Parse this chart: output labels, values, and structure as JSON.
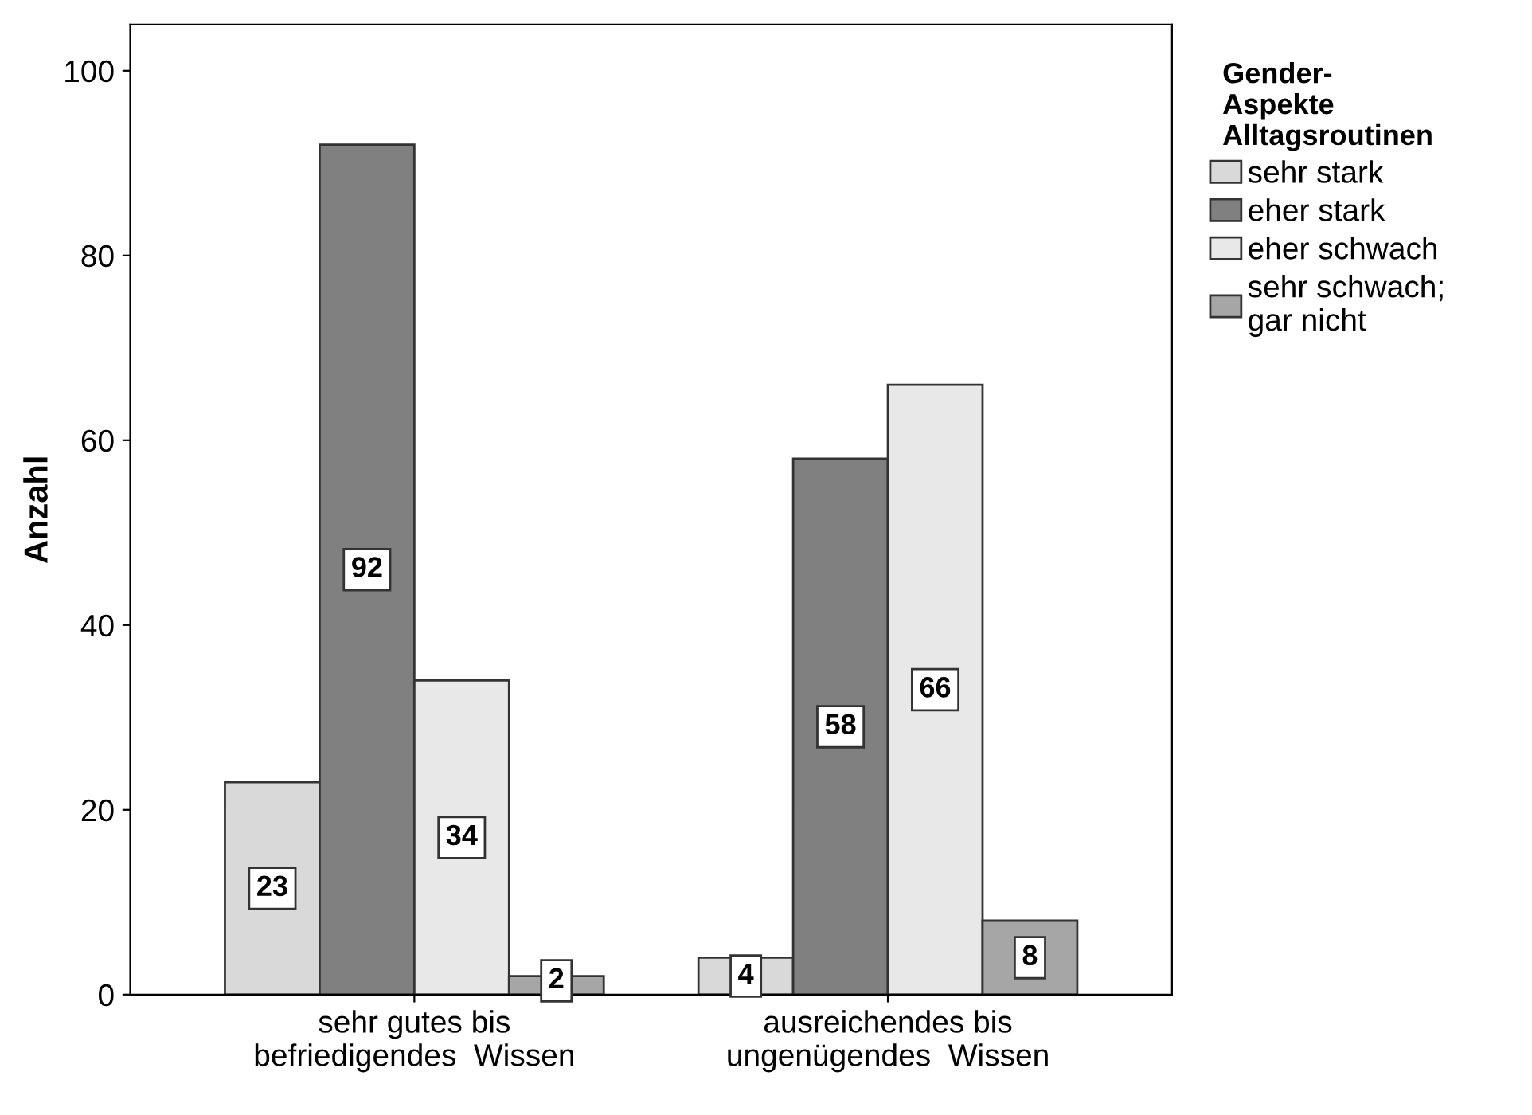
{
  "chart_data": {
    "type": "bar",
    "ylabel": "Anzahl",
    "legend_title": "Gender-\nAspekte\nAlltagsroutinen",
    "categories": [
      "sehr gutes bis\nbefriedigendes  Wissen",
      "ausreichendes bis\nungenügendes  Wissen"
    ],
    "series": [
      {
        "name": "sehr stark",
        "color": "#d9d9d9",
        "values": [
          23,
          4
        ]
      },
      {
        "name": "eher stark",
        "color": "#808080",
        "values": [
          92,
          58
        ]
      },
      {
        "name": "eher schwach",
        "color": "#e8e8e8",
        "values": [
          34,
          66
        ]
      },
      {
        "name": "sehr schwach;\ngar nicht",
        "color": "#a6a6a6",
        "values": [
          2,
          8
        ]
      }
    ],
    "ylim": [
      0,
      105
    ],
    "yticks": [
      0,
      20,
      40,
      60,
      80,
      100
    ],
    "data_labels": true,
    "legend": "right",
    "grid": false
  }
}
